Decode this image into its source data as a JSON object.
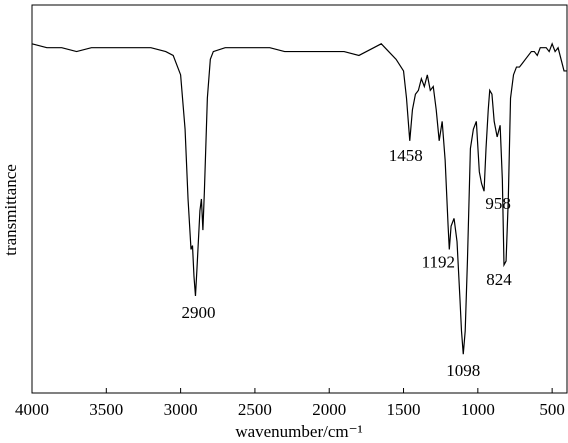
{
  "chart_data": {
    "type": "line",
    "x_label": "wavenumber/cm⁻¹",
    "y_label": "transmittance",
    "x": [
      4000,
      3900,
      3800,
      3700,
      3600,
      3500,
      3400,
      3300,
      3200,
      3100,
      3050,
      3000,
      2970,
      2950,
      2930,
      2920,
      2910,
      2900,
      2890,
      2870,
      2860,
      2850,
      2840,
      2820,
      2800,
      2780,
      2700,
      2600,
      2500,
      2400,
      2300,
      2200,
      2100,
      2000,
      1900,
      1800,
      1750,
      1700,
      1650,
      1600,
      1550,
      1500,
      1480,
      1458,
      1440,
      1420,
      1400,
      1380,
      1360,
      1340,
      1320,
      1300,
      1280,
      1260,
      1240,
      1220,
      1200,
      1192,
      1180,
      1160,
      1140,
      1120,
      1110,
      1098,
      1085,
      1070,
      1050,
      1030,
      1010,
      990,
      975,
      958,
      945,
      930,
      920,
      905,
      890,
      870,
      850,
      835,
      824,
      810,
      795,
      780,
      760,
      740,
      720,
      700,
      680,
      660,
      640,
      620,
      600,
      580,
      560,
      540,
      520,
      500,
      480,
      460,
      440,
      420,
      400
    ],
    "series": [
      {
        "color": "#000000",
        "values": [
          90,
          89,
          89,
          88,
          89,
          89,
          89,
          89,
          89,
          88,
          87,
          82,
          68,
          50,
          37,
          38,
          30,
          25,
          32,
          47,
          50,
          42,
          52,
          76,
          86,
          88,
          89,
          89,
          89,
          89,
          88,
          88,
          88,
          88,
          88,
          87,
          88,
          89,
          90,
          88,
          86,
          83,
          76,
          65,
          73,
          77,
          78,
          81,
          79,
          82,
          78,
          79,
          73,
          65,
          70,
          60,
          43,
          37,
          43,
          45,
          39,
          24,
          16,
          10,
          16,
          34,
          63,
          68,
          70,
          57,
          54,
          52,
          63,
          73,
          78,
          77,
          70,
          66,
          69,
          55,
          33,
          34,
          50,
          76,
          82,
          84,
          84,
          85,
          86,
          87,
          88,
          88,
          87,
          89,
          89,
          89,
          88,
          90,
          88,
          89,
          86,
          83,
          83
        ]
      }
    ],
    "xlim": [
      4000,
      400
    ],
    "xticks": [
      4000,
      3500,
      3000,
      2500,
      2000,
      1500,
      1000,
      500
    ],
    "ylim": [
      0,
      100
    ],
    "peak_labels": [
      2900,
      1458,
      1192,
      1098,
      958,
      824
    ]
  }
}
